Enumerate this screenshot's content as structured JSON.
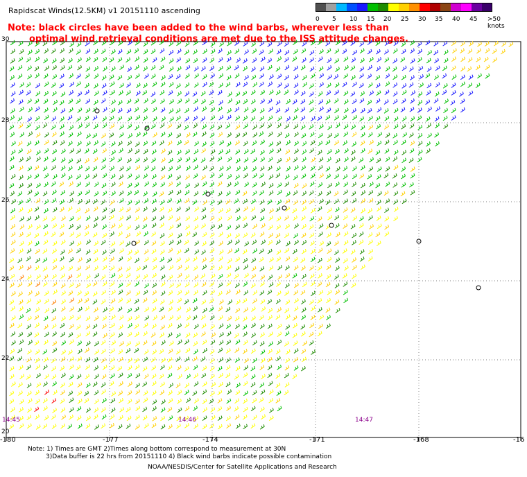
{
  "header": {
    "title": "Rapidscat Winds(12.5KM) v1 20151110 ascending",
    "note_line1": "Note: black circles have been added to the wind barbs, wherever less than",
    "note_line2": "optimal wind retrieval conditions are met due to the ISS attitude changes."
  },
  "legend": {
    "labels": [
      "0",
      "5",
      "10",
      "15",
      "20",
      "25",
      "30",
      "35",
      "40",
      "45",
      ">50 knots"
    ],
    "colors": [
      "#505050",
      "#a0a0a0",
      "#00b8ff",
      "#0050ff",
      "#1a1aff",
      "#00c000",
      "#1e8c00",
      "#ffff00",
      "#ffd000",
      "#ff9000",
      "#ff0000",
      "#b00000",
      "#8b4513",
      "#d000d0",
      "#ff00ff",
      "#6a00a0",
      "#3a006a"
    ]
  },
  "map": {
    "x_ticks": [
      "-180",
      "-177",
      "-174",
      "-171",
      "-168",
      "-16"
    ],
    "y_ticks": [
      "30",
      "28",
      "26",
      "24",
      "22",
      "20"
    ],
    "times": [
      "14:45",
      "14:46",
      "14:47"
    ],
    "colors": {
      "blue": "#1a1aff",
      "green": "#00c000",
      "dkgreen": "#1e8c00",
      "yellow": "#ffff00",
      "gold": "#ffd000",
      "orange": "#ff7f00",
      "red": "#ff0000"
    }
  },
  "footer": {
    "line1": "Note: 1) Times are GMT 2)Times along bottom correspond to measurement at 30N",
    "line2": "3)Data buffer is 22 hrs from 20151110 4) Black wind barbs indicate possible contamination",
    "line3": "NOAA/NESDIS/Center for Satellite Applications and Research"
  }
}
